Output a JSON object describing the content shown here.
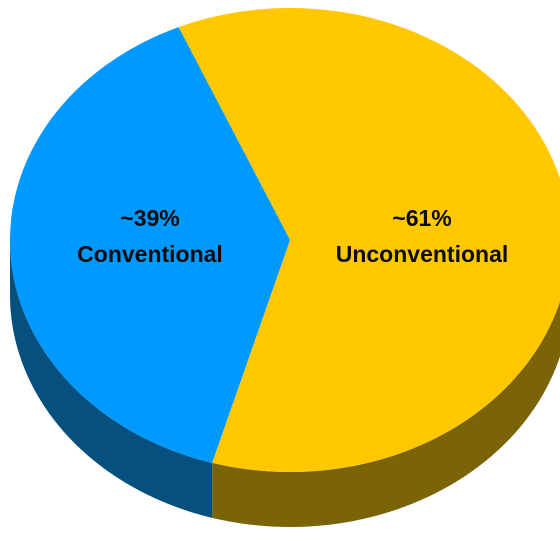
{
  "chart_data": {
    "type": "pie",
    "style": "3d",
    "title": "",
    "slices": [
      {
        "label": "Unconventional",
        "percent_label": "~61%",
        "value": 61,
        "color": "#ffc800",
        "side_color": "#7a6405"
      },
      {
        "label": "Conventional",
        "percent_label": "~39%",
        "value": 39,
        "color": "#0099ff",
        "side_color": "#05507f"
      }
    ]
  }
}
